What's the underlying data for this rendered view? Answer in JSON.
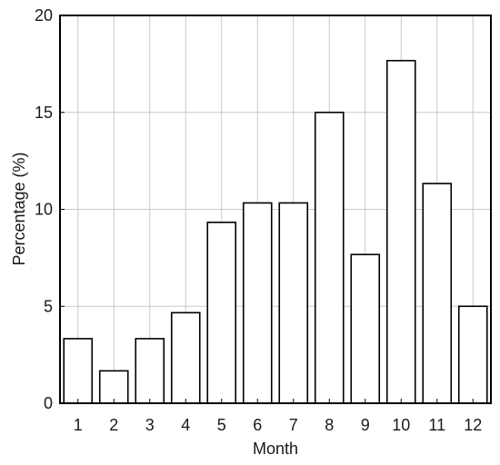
{
  "chart_data": {
    "type": "bar",
    "categories": [
      "1",
      "2",
      "3",
      "4",
      "5",
      "6",
      "7",
      "8",
      "9",
      "10",
      "11",
      "12"
    ],
    "values": [
      3.33,
      1.67,
      3.33,
      4.67,
      9.33,
      10.33,
      10.33,
      15.0,
      7.67,
      17.67,
      11.33,
      5.0
    ],
    "xlabel": "Month",
    "ylabel": "Percentage (%)",
    "ylim": [
      0,
      20
    ],
    "yticks": [
      "0",
      "5",
      "10",
      "15",
      "20"
    ],
    "grid": true,
    "colors": {
      "bar_fill": "#ffffff",
      "bar_stroke": "#000000",
      "grid": "#c8c8c8"
    }
  }
}
